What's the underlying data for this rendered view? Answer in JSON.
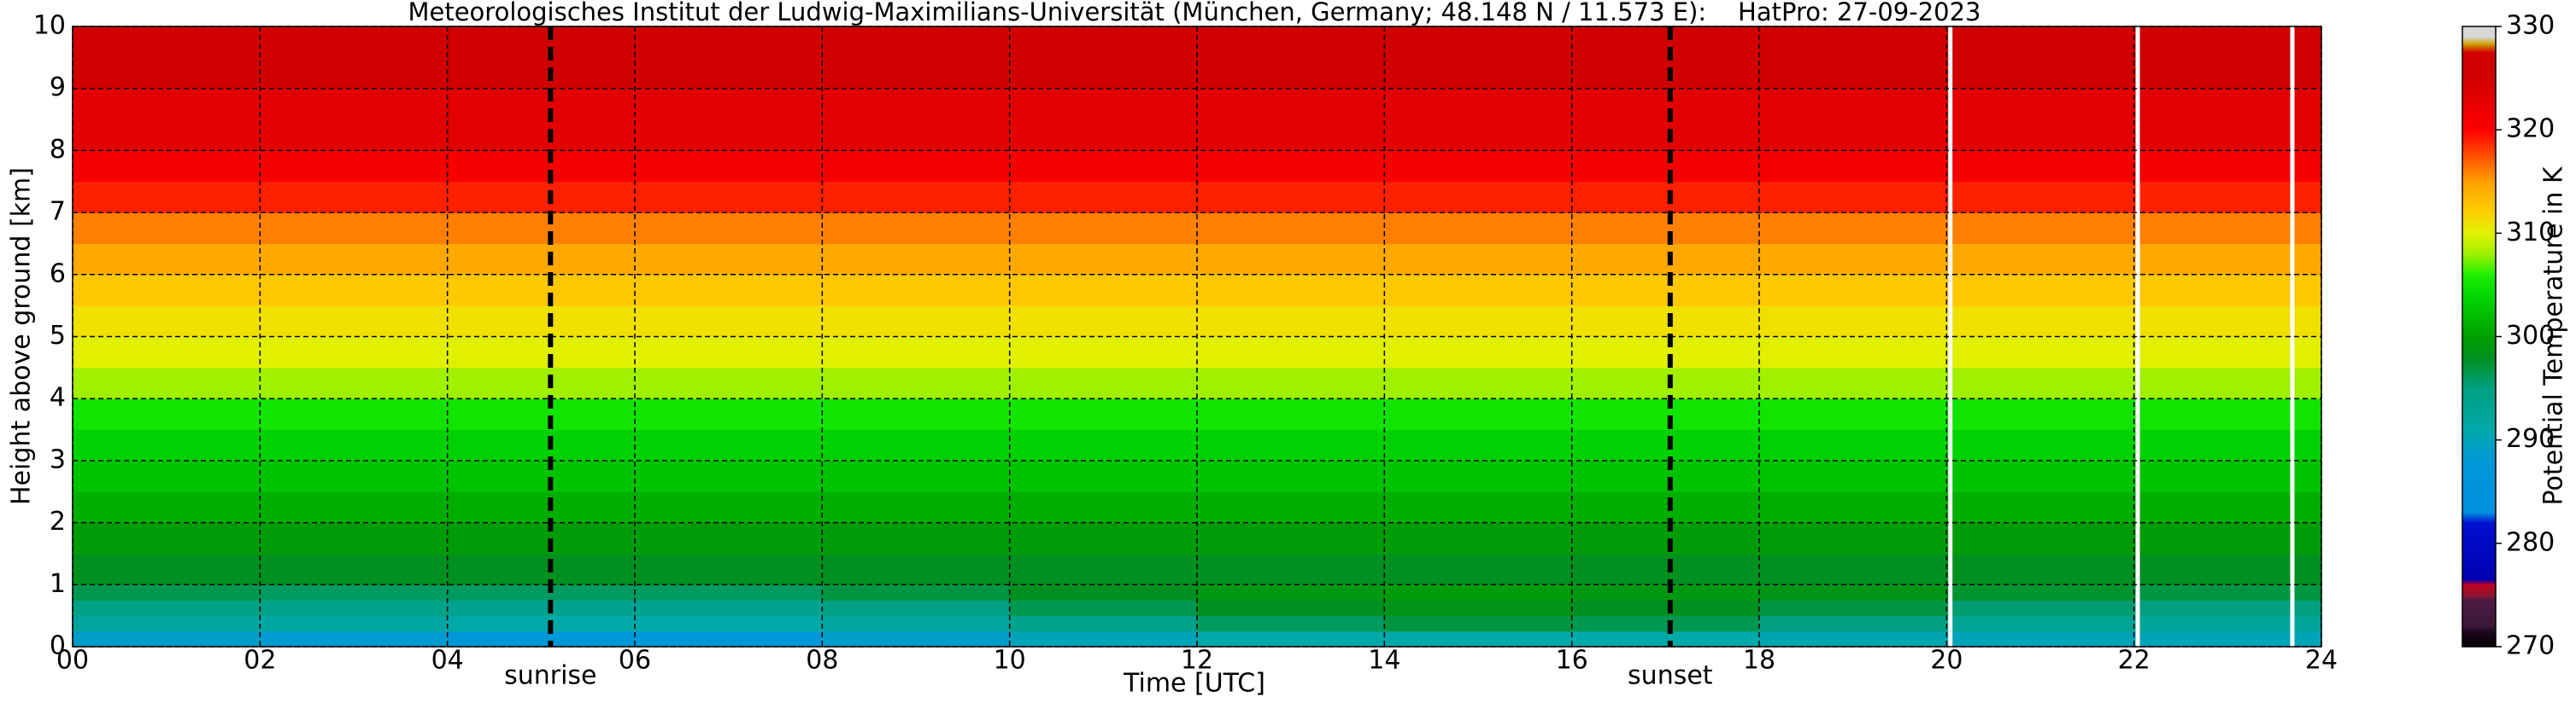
{
  "chart_data": {
    "type": "heatmap",
    "title": "Meteorologisches Institut der Ludwig-Maximilians-Universität (München, Germany; 48.148 N / 11.573 E):    HatPro: 27-09-2023",
    "x_label": "Time [UTC]",
    "y_label": "Height above ground [km]",
    "colorbar_label": "Potential Temperature in K",
    "x_bins": [
      0,
      2,
      4,
      6,
      8,
      10,
      12,
      14,
      16,
      18,
      20,
      22,
      24
    ],
    "y_bins": [
      0,
      0.25,
      0.5,
      0.75,
      1,
      1.5,
      2,
      2.5,
      3,
      3.5,
      4,
      4.5,
      5,
      5.5,
      6,
      6.5,
      7,
      7.5,
      8,
      9,
      10
    ],
    "values": [
      [
        289,
        288.5,
        288,
        288,
        289,
        290,
        291,
        291,
        291,
        290.5,
        290,
        290
      ],
      [
        292,
        291.5,
        291,
        291,
        292,
        294,
        296,
        297,
        296.5,
        295,
        293,
        292.5
      ],
      [
        294.5,
        294,
        293.5,
        293.5,
        294.5,
        296.5,
        298,
        298.5,
        298,
        297,
        295.5,
        295
      ],
      [
        296.5,
        296,
        296,
        296,
        297,
        298,
        299,
        299.5,
        299,
        298.5,
        297.5,
        297
      ],
      [
        298,
        298,
        298,
        298,
        298,
        298,
        298,
        298,
        298,
        298,
        298,
        298
      ],
      [
        299.5,
        299.5,
        299.5,
        299.5,
        299.5,
        299.5,
        299.5,
        299.5,
        299.5,
        299.5,
        299.5,
        299.5
      ],
      [
        301,
        301,
        301,
        301,
        301,
        301,
        301,
        301,
        301,
        301,
        301,
        301
      ],
      [
        302.5,
        302.5,
        302.5,
        302.5,
        302.5,
        302.5,
        302.5,
        302.5,
        302.5,
        302.5,
        302.5,
        302.5
      ],
      [
        303.5,
        303.5,
        303.5,
        303.5,
        303.5,
        303.5,
        303.5,
        303.5,
        303.5,
        303.5,
        303.5,
        303.5
      ],
      [
        305,
        305,
        305,
        305,
        305,
        305,
        305,
        305,
        305,
        305,
        305,
        305
      ],
      [
        308,
        308,
        308,
        308,
        308,
        308,
        308,
        308,
        308,
        308,
        308,
        308
      ],
      [
        310,
        310,
        310,
        310,
        310,
        310,
        310,
        310,
        310,
        310,
        310,
        310
      ],
      [
        311,
        311,
        311,
        311,
        311,
        311,
        311,
        311,
        311,
        311,
        311,
        311
      ],
      [
        312.5,
        312.5,
        312.5,
        312.5,
        312.5,
        312.5,
        312.5,
        312.5,
        312.5,
        312.5,
        312.5,
        312.5
      ],
      [
        314.5,
        314.5,
        314.5,
        314.5,
        314.5,
        314.5,
        314.5,
        314.5,
        314.5,
        314.5,
        314.5,
        314.5
      ],
      [
        316,
        316,
        316,
        316,
        316,
        316,
        316,
        316,
        316,
        316,
        316,
        316
      ],
      [
        319,
        319,
        319,
        319,
        319,
        319,
        319,
        319,
        319,
        319,
        319,
        319
      ],
      [
        321,
        321,
        321,
        321,
        321,
        321,
        321,
        321,
        321,
        321,
        321,
        321
      ],
      [
        323,
        323,
        323,
        323,
        323,
        323,
        323,
        323,
        323,
        323,
        323,
        323
      ],
      [
        325,
        325,
        325,
        325,
        325,
        325,
        325,
        325,
        325,
        325,
        325,
        325
      ]
    ],
    "xlim": [
      0,
      24
    ],
    "ylim": [
      0,
      10
    ],
    "xticks": [
      {
        "value": 0,
        "label": "00"
      },
      {
        "value": 2,
        "label": "02"
      },
      {
        "value": 4,
        "label": "04"
      },
      {
        "value": 6,
        "label": "06"
      },
      {
        "value": 8,
        "label": "08"
      },
      10,
      12,
      14,
      16,
      18,
      20,
      22,
      24
    ],
    "yticks": [
      0,
      1,
      2,
      3,
      4,
      5,
      6,
      7,
      8,
      9,
      10
    ],
    "grid": true,
    "clim": [
      270,
      330
    ],
    "cticks": [
      270,
      280,
      290,
      300,
      310,
      320,
      330
    ],
    "colormap": [
      {
        "value": 270,
        "color": "#000000"
      },
      {
        "value": 271.5,
        "color": "#200820"
      },
      {
        "value": 272,
        "color": "#3c1838"
      },
      {
        "value": 274.5,
        "color": "#4a1a40"
      },
      {
        "value": 275,
        "color": "#901530"
      },
      {
        "value": 276,
        "color": "#c00020"
      },
      {
        "value": 276.5,
        "color": "#0000b0"
      },
      {
        "value": 282,
        "color": "#0010d0"
      },
      {
        "value": 283,
        "color": "#0090e0"
      },
      {
        "value": 288,
        "color": "#0098d8"
      },
      {
        "value": 291,
        "color": "#00a8a8"
      },
      {
        "value": 295,
        "color": "#00a080"
      },
      {
        "value": 298,
        "color": "#009020"
      },
      {
        "value": 300,
        "color": "#00a000"
      },
      {
        "value": 304,
        "color": "#00d800"
      },
      {
        "value": 306,
        "color": "#20f000"
      },
      {
        "value": 308,
        "color": "#a0f000"
      },
      {
        "value": 310,
        "color": "#e0f000"
      },
      {
        "value": 312,
        "color": "#ffd000"
      },
      {
        "value": 315,
        "color": "#ffa000"
      },
      {
        "value": 318,
        "color": "#ff4000"
      },
      {
        "value": 320,
        "color": "#ff0000"
      },
      {
        "value": 325,
        "color": "#d00000"
      },
      {
        "value": 327.5,
        "color": "#d00000"
      },
      {
        "value": 328.3,
        "color": "#d0a000"
      },
      {
        "value": 329,
        "color": "#d8d8d8"
      },
      {
        "value": 330,
        "color": "#d8d8d8"
      }
    ],
    "annotations": [
      {
        "x": 5.1,
        "label": "sunrise"
      },
      {
        "x": 17.05,
        "label": "sunset"
      }
    ],
    "gaps": [
      20.04,
      22.04,
      23.69
    ]
  }
}
